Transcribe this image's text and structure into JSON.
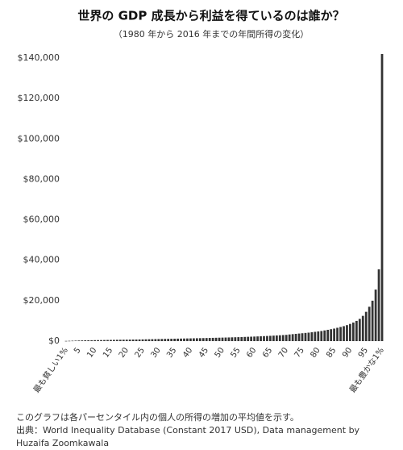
{
  "chart_data": {
    "type": "bar",
    "title": "世界の GDP 成長から利益を得ているのは誰か？",
    "subtitle": "（1980 年から 2016 年までの年間所得の変化）",
    "categories": [
      "最も貧しい1%",
      null,
      null,
      null,
      "5",
      null,
      null,
      null,
      null,
      "10",
      null,
      null,
      null,
      null,
      "15",
      null,
      null,
      null,
      null,
      "20",
      null,
      null,
      null,
      null,
      "25",
      null,
      null,
      null,
      null,
      "30",
      null,
      null,
      null,
      null,
      "35",
      null,
      null,
      null,
      null,
      "40",
      null,
      null,
      null,
      null,
      "45",
      null,
      null,
      null,
      null,
      "50",
      null,
      null,
      null,
      null,
      "55",
      null,
      null,
      null,
      null,
      "60",
      null,
      null,
      null,
      null,
      "65",
      null,
      null,
      null,
      null,
      "70",
      null,
      null,
      null,
      null,
      "75",
      null,
      null,
      null,
      null,
      "80",
      null,
      null,
      null,
      null,
      "85",
      null,
      null,
      null,
      null,
      "90",
      null,
      null,
      null,
      null,
      "95",
      null,
      null,
      null,
      null,
      "最も豊かな1%"
    ],
    "values": [
      100,
      150,
      200,
      250,
      300,
      350,
      400,
      420,
      450,
      480,
      500,
      520,
      550,
      580,
      600,
      620,
      650,
      680,
      700,
      720,
      750,
      780,
      800,
      830,
      860,
      900,
      930,
      960,
      1000,
      1030,
      1060,
      1100,
      1130,
      1160,
      1200,
      1230,
      1260,
      1300,
      1330,
      1360,
      1400,
      1430,
      1460,
      1500,
      1540,
      1580,
      1620,
      1660,
      1700,
      1740,
      1780,
      1820,
      1870,
      1920,
      1970,
      2020,
      2080,
      2140,
      2200,
      2260,
      2330,
      2400,
      2470,
      2550,
      2630,
      2720,
      2810,
      2900,
      3000,
      3100,
      3300,
      3450,
      3600,
      3750,
      3900,
      4050,
      4200,
      4400,
      4600,
      4800,
      5000,
      5300,
      5600,
      5900,
      6200,
      6600,
      7000,
      7400,
      7900,
      8500,
      9200,
      10000,
      11000,
      12500,
      14500,
      17000,
      20000,
      25500,
      35500,
      142000
    ],
    "color": "#333333",
    "ylim": [
      0,
      140000
    ],
    "yticks": [
      {
        "value": 0,
        "label": "$0"
      },
      {
        "value": 20000,
        "label": "$20,000"
      },
      {
        "value": 40000,
        "label": "$40,000"
      },
      {
        "value": 60000,
        "label": "$60,000"
      },
      {
        "value": 80000,
        "label": "$80,000"
      },
      {
        "value": 100000,
        "label": "$100,000"
      },
      {
        "value": 120000,
        "label": "$120,000"
      },
      {
        "value": 140000,
        "label": "$140,000"
      }
    ],
    "grid": false,
    "footnote": "このグラフは各パーセンタイル内の個人の所得の増加の平均値を示す。",
    "source": "出典：World Inequality Database (Constant 2017 USD), Data management by Huzaifa Zoomkawala"
  }
}
